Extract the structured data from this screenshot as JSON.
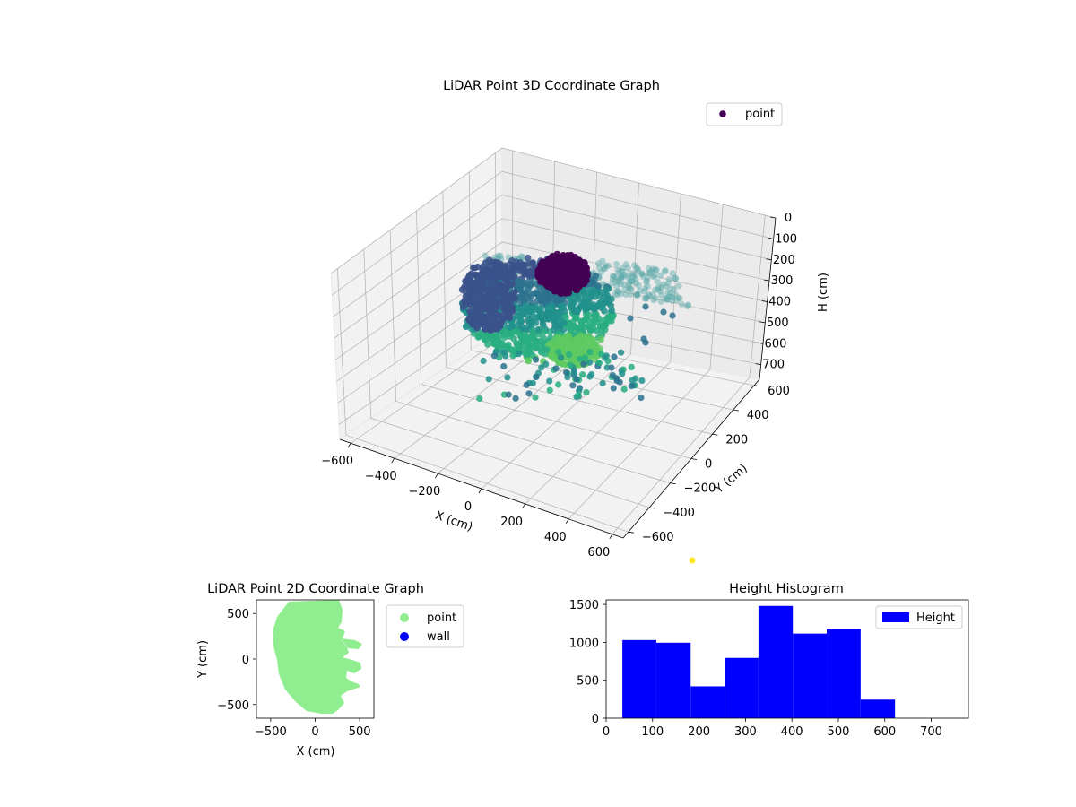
{
  "chart_data": [
    {
      "type": "scatter",
      "projection": "3d",
      "title": "LiDAR Point 3D Coordinate Graph",
      "xlabel": "X (cm)",
      "ylabel": "Y (cm)",
      "zlabel": "H (cm)",
      "xlim": [
        -650,
        650
      ],
      "ylim": [
        -650,
        650
      ],
      "zlim": [
        770,
        0
      ],
      "xticks": [
        "−600",
        "−400",
        "−200",
        "0",
        "200",
        "400",
        "600"
      ],
      "yticks": [
        "−600",
        "−400",
        "−200",
        "0",
        "200",
        "400",
        "600"
      ],
      "zticks": [
        "0",
        "100",
        "200",
        "300",
        "400",
        "500",
        "600",
        "700"
      ],
      "legend": [
        {
          "label": "point",
          "color": "#440154"
        }
      ],
      "legend_position": "top-right",
      "colormap": "viridis",
      "extra_marker_color": "#fde725",
      "grid": true
    },
    {
      "type": "scatter",
      "title": "LiDAR Point 2D Coordinate Graph",
      "xlabel": "X (cm)",
      "ylabel": "Y (cm)",
      "xlim": [
        -660,
        660
      ],
      "ylim": [
        -650,
        650
      ],
      "xticks": [
        "−500",
        "0",
        "500"
      ],
      "yticks": [
        "−500",
        "0",
        "500"
      ],
      "series": [
        {
          "name": "point",
          "color": "#90ee90"
        },
        {
          "name": "wall",
          "color": "#0000ff"
        }
      ],
      "legend_position": "outside-right"
    },
    {
      "type": "bar",
      "title": "Height Histogram",
      "xlabel": "",
      "ylabel": "",
      "xlim": [
        0,
        780
      ],
      "ylim": [
        0,
        1560
      ],
      "xticks": [
        "0",
        "100",
        "200",
        "300",
        "400",
        "500",
        "600",
        "700"
      ],
      "yticks": [
        "0",
        "500",
        "1000",
        "1500"
      ],
      "bin_edges": [
        35,
        108,
        182,
        255,
        328,
        402,
        475,
        548,
        622,
        695,
        768
      ],
      "counts": [
        1030,
        995,
        420,
        795,
        1480,
        1115,
        1170,
        245,
        0,
        0
      ],
      "series": [
        {
          "name": "Height",
          "color": "#0000ff"
        }
      ],
      "legend_position": "top-right"
    }
  ]
}
